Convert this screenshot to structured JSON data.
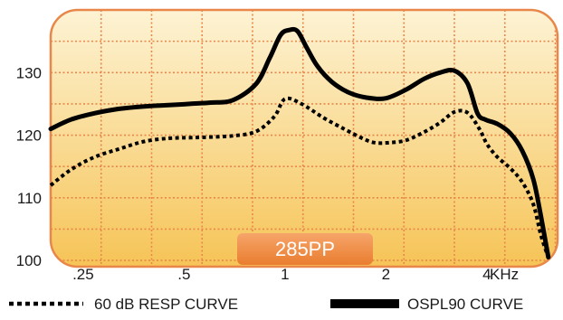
{
  "chart_data": {
    "type": "line",
    "title": "",
    "xlabel": "",
    "ylabel": "",
    "x_scale": "log",
    "x_unit": "KHz",
    "x_ticks": [
      0.25,
      0.5,
      1,
      2,
      4
    ],
    "x_tick_labels": [
      ".25",
      ".5",
      "1",
      "2",
      "4"
    ],
    "xlim": [
      0.2,
      6.5
    ],
    "y_ticks": [
      100,
      110,
      120,
      130
    ],
    "y_tick_labels": [
      "100",
      "110",
      "120",
      "130"
    ],
    "ylim": [
      99,
      140
    ],
    "grid": true,
    "legend_position": "bottom",
    "badge": "285PP",
    "colors": {
      "background_top": "#fdf3d4",
      "background_bottom": "#f6c457",
      "frame": "#e9874a",
      "grid": "#e9874a",
      "badge_top": "#f6a56a",
      "badge_bottom": "#e97d2f",
      "badge_text": "#ffffff",
      "curve": "#000000"
    },
    "series": [
      {
        "name": "60 dB RESP CURVE",
        "style": "dotted",
        "x": [
          0.2,
          0.23,
          0.27,
          0.32,
          0.38,
          0.45,
          0.52,
          0.6,
          0.7,
          0.82,
          0.93,
          1.0,
          1.12,
          1.3,
          1.5,
          1.7,
          1.85,
          2.05,
          2.3,
          2.6,
          2.9,
          3.2,
          3.5,
          3.8,
          4.0,
          4.3,
          4.7,
          5.1,
          5.5,
          5.8,
          6.1
        ],
        "y": [
          112,
          114.5,
          116.5,
          117.8,
          119,
          119.5,
          119.6,
          119.7,
          119.9,
          120.6,
          123,
          125.8,
          125,
          122.8,
          121,
          119.5,
          118.8,
          118.8,
          119.2,
          120.5,
          122,
          123.7,
          123.6,
          121,
          118.6,
          116.5,
          114.7,
          112.5,
          109,
          104,
          100.5
        ]
      },
      {
        "name": "OSPL90 CURVE",
        "style": "solid",
        "x": [
          0.2,
          0.23,
          0.27,
          0.32,
          0.38,
          0.45,
          0.52,
          0.6,
          0.7,
          0.82,
          0.9,
          0.97,
          1.03,
          1.09,
          1.16,
          1.25,
          1.38,
          1.55,
          1.75,
          2.0,
          2.3,
          2.6,
          2.9,
          3.2,
          3.5,
          3.75,
          3.95,
          4.3,
          4.7,
          5.1,
          5.5,
          5.8,
          6.1
        ],
        "y": [
          121,
          122.5,
          123.5,
          124.2,
          124.6,
          124.8,
          125,
          125.2,
          125.6,
          128.2,
          132.3,
          136,
          136.8,
          136.6,
          134,
          131,
          128.5,
          126.8,
          126,
          125.9,
          127.3,
          129,
          130,
          130.3,
          128.3,
          123.5,
          122.5,
          121.8,
          120.3,
          117.5,
          113,
          107,
          100.5
        ]
      }
    ]
  }
}
